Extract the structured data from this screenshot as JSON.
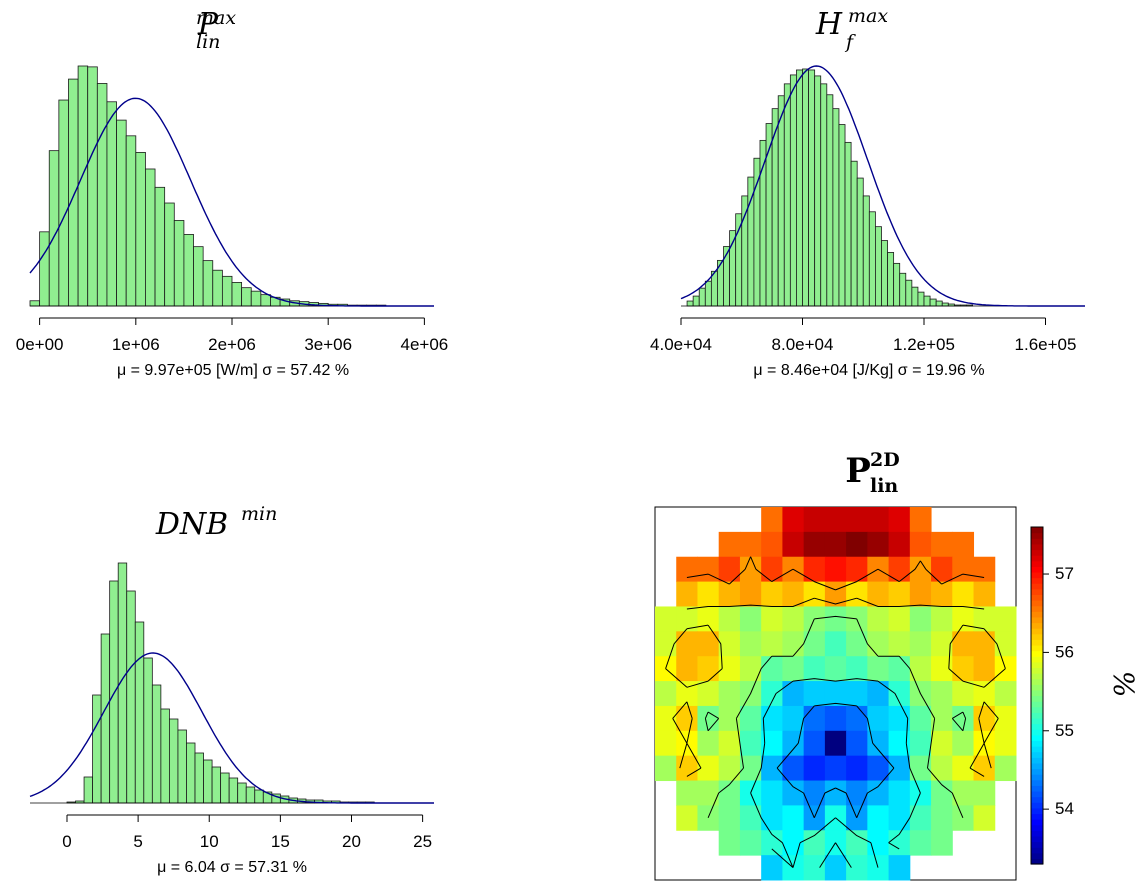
{
  "chart_data": [
    {
      "type": "histogram",
      "title": {
        "base": "P",
        "sup": "max",
        "sub": "lin"
      },
      "xticks": [
        "0e+00",
        "1e+06",
        "2e+06",
        "3e+06",
        "4e+06"
      ],
      "xtick_values": [
        0,
        1000000,
        2000000,
        3000000,
        4000000
      ],
      "xlim": [
        -100000,
        4100000
      ],
      "bin_start": -100000,
      "bin_width": 100000,
      "counts": [
        6,
        85,
        178,
        236,
        260,
        275,
        274,
        255,
        234,
        213,
        195,
        176,
        157,
        136,
        118,
        98,
        82,
        68,
        52,
        41,
        34,
        27,
        21,
        17,
        13,
        10,
        8,
        6,
        5,
        4,
        3,
        2,
        2,
        1,
        1,
        1,
        1,
        0,
        0,
        0,
        0,
        0
      ],
      "normal_fit": {
        "mean": 997000,
        "sd": 572000,
        "peak": 238
      },
      "stats_label": "μ = 9.97e+05 [W/m] σ = 57.42 %"
    },
    {
      "type": "histogram",
      "title": {
        "base": "H",
        "sup": "max",
        "sub": "f"
      },
      "xticks": [
        "4.0e+04",
        "8.0e+04",
        "1.2e+05",
        "1.6e+05"
      ],
      "xtick_values": [
        40000,
        80000,
        120000,
        160000
      ],
      "xlim": [
        40000,
        173000
      ],
      "bin_start": 42000,
      "bin_width": 2000,
      "counts": [
        5,
        10,
        18,
        25,
        35,
        46,
        60,
        76,
        93,
        111,
        130,
        149,
        167,
        184,
        199,
        212,
        224,
        233,
        238,
        239,
        238,
        232,
        224,
        213,
        199,
        183,
        165,
        146,
        129,
        111,
        95,
        80,
        66,
        54,
        43,
        33,
        26,
        19,
        14,
        10,
        7,
        5,
        3,
        2,
        1,
        1,
        1,
        0,
        0,
        0,
        0,
        0,
        0,
        0,
        0,
        0,
        0,
        0,
        0,
        0,
        0,
        0,
        0,
        0,
        0
      ],
      "normal_fit": {
        "mean": 84600,
        "sd": 16900,
        "peak": 242
      },
      "stats_label": "μ = 8.46e+04 [J/Kg] σ = 19.96 %"
    },
    {
      "type": "histogram",
      "title": {
        "base": "DNB",
        "sup": "min",
        "sub": ""
      },
      "xticks": [
        "0",
        "5",
        "10",
        "15",
        "20",
        "25"
      ],
      "xtick_values": [
        0,
        5,
        10,
        15,
        20,
        25
      ],
      "xlim": [
        -2.6,
        25.8
      ],
      "bin_start": 0,
      "bin_width": 0.6,
      "counts": [
        1,
        2,
        26,
        108,
        169,
        222,
        240,
        212,
        181,
        145,
        118,
        94,
        84,
        73,
        60,
        50,
        43,
        36,
        30,
        25,
        20,
        16,
        13,
        11,
        9,
        7,
        5,
        4,
        3,
        3,
        2,
        2,
        1,
        1,
        1,
        1,
        0,
        0,
        0,
        0,
        0,
        0
      ],
      "normal_fit": {
        "mean": 6.04,
        "sd": 3.46,
        "peak": 150
      },
      "stats_label": "μ = 6.04  σ = 57.31 %"
    },
    {
      "type": "heatmap",
      "title": {
        "base": "P",
        "sup": "2D",
        "sub": "lin"
      },
      "colorbar_label": "%",
      "colorbar_ticks": [
        54,
        55,
        56,
        57
      ],
      "color_range": [
        53.3,
        57.6
      ],
      "contour_levels": [
        54.5,
        55.0,
        55.5,
        56.0,
        56.5
      ],
      "grid": [
        [
          null,
          null,
          null,
          null,
          null,
          56.6,
          57.2,
          57.3,
          57.3,
          57.3,
          57.3,
          57.2,
          56.6,
          null,
          null,
          null,
          null
        ],
        [
          null,
          null,
          null,
          56.6,
          56.6,
          56.7,
          57.3,
          57.5,
          57.5,
          57.6,
          57.5,
          57.3,
          56.7,
          56.6,
          56.6,
          null,
          null
        ],
        [
          null,
          56.6,
          56.6,
          56.8,
          56.4,
          56.8,
          56.5,
          56.9,
          57.0,
          56.9,
          56.5,
          56.8,
          56.4,
          56.8,
          56.6,
          56.6,
          null
        ],
        [
          null,
          56.3,
          56.1,
          56.3,
          56.4,
          56.2,
          56.3,
          56.1,
          56.4,
          56.1,
          56.3,
          56.2,
          56.4,
          56.3,
          56.1,
          56.3,
          null
        ],
        [
          55.8,
          55.8,
          55.9,
          55.7,
          55.5,
          55.8,
          55.7,
          55.5,
          55.4,
          55.5,
          55.7,
          55.8,
          55.5,
          55.7,
          55.9,
          55.8,
          55.8
        ],
        [
          55.8,
          56.3,
          56.3,
          55.8,
          55.6,
          55.7,
          55.6,
          55.4,
          55.2,
          55.4,
          55.6,
          55.7,
          55.6,
          55.8,
          56.3,
          56.3,
          55.8
        ],
        [
          56.0,
          56.3,
          56.2,
          55.9,
          55.7,
          55.3,
          55.4,
          55.2,
          55.3,
          55.2,
          55.4,
          55.3,
          55.7,
          55.9,
          56.2,
          56.3,
          56.0
        ],
        [
          55.7,
          55.9,
          55.8,
          55.6,
          55.5,
          55.1,
          54.6,
          54.7,
          54.7,
          54.7,
          54.6,
          55.1,
          55.5,
          55.6,
          55.8,
          55.9,
          55.7
        ],
        [
          55.9,
          56.2,
          55.4,
          55.6,
          55.3,
          54.8,
          54.7,
          54.3,
          54.2,
          54.3,
          54.7,
          54.8,
          55.3,
          55.6,
          55.4,
          56.2,
          55.9
        ],
        [
          55.9,
          56.0,
          55.6,
          55.8,
          55.2,
          54.9,
          54.6,
          54.2,
          53.3,
          54.2,
          54.6,
          54.9,
          55.2,
          55.8,
          55.6,
          56.0,
          55.9
        ],
        [
          55.6,
          56.2,
          55.9,
          55.7,
          55.4,
          54.6,
          54.2,
          54.0,
          54.1,
          54.0,
          54.2,
          54.6,
          55.4,
          55.7,
          55.9,
          56.2,
          55.6
        ],
        [
          null,
          55.6,
          55.6,
          55.4,
          55.0,
          54.8,
          54.6,
          54.4,
          54.6,
          54.4,
          54.6,
          54.8,
          55.0,
          55.4,
          55.6,
          55.6,
          null
        ],
        [
          null,
          55.8,
          55.5,
          55.4,
          55.2,
          54.8,
          54.9,
          54.5,
          55.0,
          54.5,
          54.9,
          54.8,
          55.2,
          55.4,
          55.5,
          55.8,
          null
        ],
        [
          null,
          null,
          null,
          55.4,
          55.3,
          55.1,
          54.9,
          55.2,
          55.0,
          55.2,
          54.9,
          55.1,
          55.3,
          55.4,
          null,
          null,
          null
        ],
        [
          null,
          null,
          null,
          null,
          null,
          54.7,
          55.0,
          55.1,
          54.7,
          55.1,
          55.0,
          54.7,
          null,
          null,
          null,
          null,
          null
        ]
      ]
    }
  ],
  "colors": {
    "bar_fill": "#90EE90",
    "bar_stroke": "#1a1a1a",
    "fit_line": "#00008B",
    "axis": "#000000"
  }
}
